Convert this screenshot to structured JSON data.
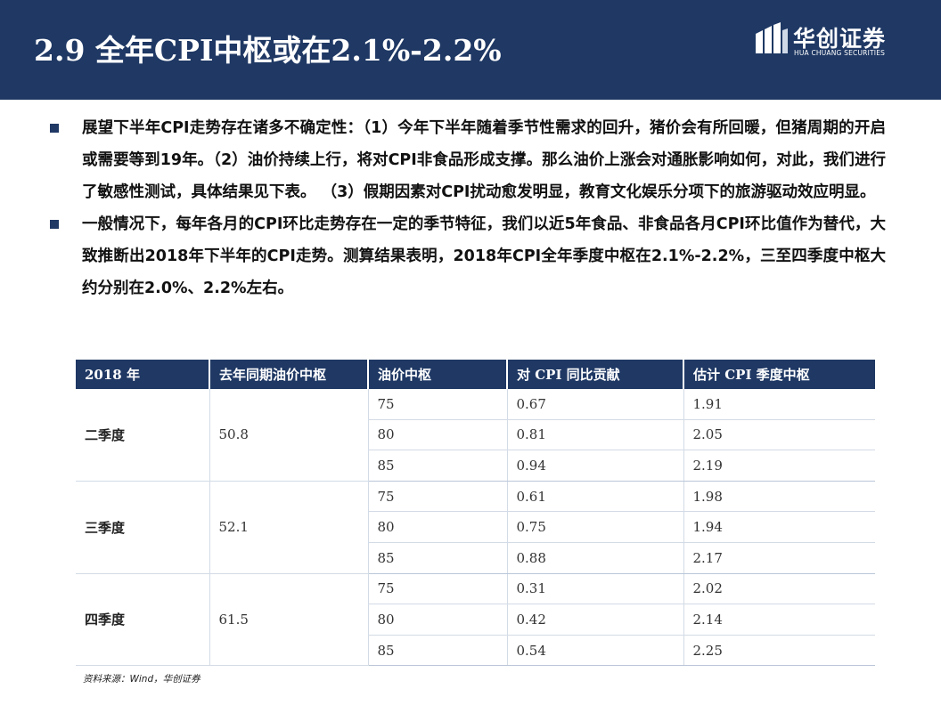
{
  "header": {
    "title": "2.9 全年CPI中枢或在2.1%-2.2%",
    "logo": {
      "name_cn": "华创证券",
      "name_en": "HUA CHUANG SECURITIES"
    },
    "background_color": "#1f3864"
  },
  "bullets": [
    "展望下半年CPI走势存在诸多不确定性：（1）今年下半年随着季节性需求的回升，猪价会有所回暖，但猪周期的开启或需要等到19年。（2）油价持续上行，将对CPI非食品形成支撑。那么油价上涨会对通胀影响如何，对此，我们进行了敏感性测试，具体结果见下表。 （3）假期因素对CPI扰动愈发明显，教育文化娱乐分项下的旅游驱动效应明显。",
    "一般情况下，每年各月的CPI环比走势存在一定的季节特征，我们以近5年食品、非食品各月CPI环比值作为替代，大致推断出2018年下半年的CPI走势。测算结果表明，2018年CPI全年季度中枢在2.1%-2.2%，三至四季度中枢大约分别在2.0%、2.2%左右。"
  ],
  "table": {
    "headers": [
      "2018 年",
      "去年同期油价中枢",
      "油价中枢",
      "对 CPI 同比贡献",
      "估计 CPI 季度中枢"
    ],
    "groups": [
      {
        "quarter": "二季度",
        "last_year_oil": "50.8",
        "rows": [
          {
            "oil": "75",
            "contribution": "0.67",
            "estimate": "1.91"
          },
          {
            "oil": "80",
            "contribution": "0.81",
            "estimate": "2.05"
          },
          {
            "oil": "85",
            "contribution": "0.94",
            "estimate": "2.19"
          }
        ]
      },
      {
        "quarter": "三季度",
        "last_year_oil": "52.1",
        "rows": [
          {
            "oil": "75",
            "contribution": "0.61",
            "estimate": "1.98"
          },
          {
            "oil": "80",
            "contribution": "0.75",
            "estimate": "1.94"
          },
          {
            "oil": "85",
            "contribution": "0.88",
            "estimate": "2.17"
          }
        ]
      },
      {
        "quarter": "四季度",
        "last_year_oil": "61.5",
        "rows": [
          {
            "oil": "75",
            "contribution": "0.31",
            "estimate": "2.02"
          },
          {
            "oil": "80",
            "contribution": "0.42",
            "estimate": "2.14"
          },
          {
            "oil": "85",
            "contribution": "0.54",
            "estimate": "2.25"
          }
        ]
      }
    ]
  },
  "source": "资料来源：Wind，华创证券"
}
